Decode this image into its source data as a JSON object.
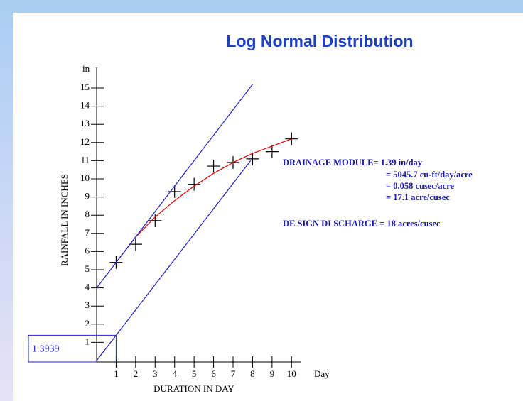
{
  "chart_data": {
    "type": "line",
    "title": "Log Normal Distribution",
    "y_label": "RAINFALL IN INCHES",
    "x_label": "DURATION IN DAY",
    "y_unit": "in",
    "x_unit": "Day",
    "xlim": [
      0,
      10.5
    ],
    "ylim": [
      0,
      16
    ],
    "xticks": [
      1,
      2,
      3,
      4,
      5,
      6,
      7,
      8,
      9,
      10
    ],
    "yticks": [
      1,
      2,
      3,
      4,
      5,
      6,
      7,
      8,
      9,
      10,
      11,
      12,
      13,
      14,
      15
    ],
    "marker_value": 1.3939,
    "series": [
      {
        "color": "#000000",
        "marker": "cross",
        "x": [
          1,
          2,
          3,
          4,
          5,
          6,
          7,
          8,
          9,
          10
        ],
        "values": [
          5.4,
          6.4,
          7.7,
          9.3,
          9.7,
          10.7,
          10.9,
          11.1,
          11.5,
          12.2
        ]
      },
      {
        "color": "#e00000",
        "marker": "none",
        "x": [
          1,
          2,
          3,
          4,
          5,
          6,
          7,
          8,
          9,
          10
        ],
        "values": [
          5.4,
          6.8,
          7.9,
          8.8,
          9.6,
          10.3,
          10.9,
          11.4,
          11.8,
          12.2
        ]
      },
      {
        "color": "#2020d0",
        "marker": "none",
        "x": [
          0,
          8
        ],
        "values": [
          4.0,
          15.2
        ]
      },
      {
        "color": "#2020d0",
        "marker": "none",
        "x": [
          0,
          7.9
        ],
        "values": [
          0,
          11.0
        ]
      }
    ],
    "annotations": [
      "DRAINAGE MODULE= 1.39 in/day",
      "= 5045.7 cu-ft/day/acre",
      "= 0.058 cusec/acre",
      "= 17.1 acre/cusec",
      "DE SIGN DI SCHARGE = 18 acres/cusec"
    ]
  }
}
